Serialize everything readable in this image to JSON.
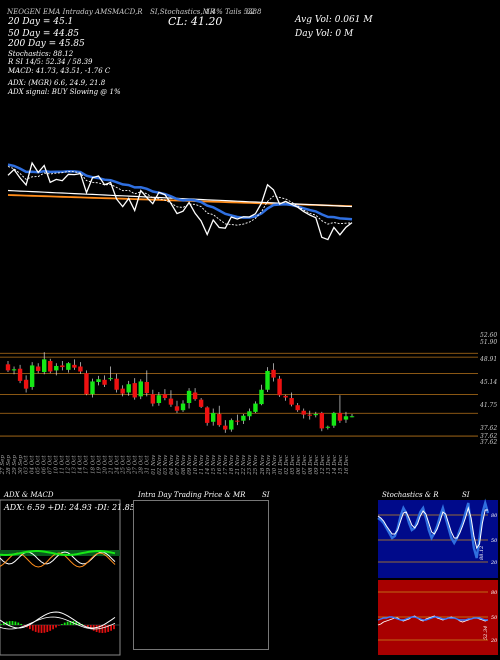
{
  "header": {
    "top_line_left": "NEOGEN EMA Intraday AMSMACD,R",
    "top_line_mid": "SI,Stochastics,MR",
    "top_line_right": "",
    "cl_label": "CL: 41.20",
    "cl_extra": "1.4% Tails 5388",
    "cl_extra2": "62",
    "avg_vol": "Avg Vol: 0.061 M",
    "day_vol": "Day Vol: 0   M",
    "ema": [
      {
        "label": "20  Day = 45.1",
        "color": "#ffffff"
      },
      {
        "label": "50  Day = 44.85",
        "color": "#ffffff"
      },
      {
        "label": "200  Day = 45.85",
        "color": "#ffffff"
      }
    ],
    "stoch_line": "Stochastics: 88.12",
    "rsi_line": "R                SI 14/5: 52.34  / 58.39",
    "macd_line": "MACD: 41.73,  43.51, -1.76  C",
    "adx_line": "ADX:                              (MGR) 6.6,  24.9,  21.8",
    "adx_signal": "ADX  signal:                        BUY Slowing @ 1%"
  },
  "price_levels": [
    {
      "label": "52.60",
      "value": 52.6
    },
    {
      "label": "51.90",
      "value": 51.9
    },
    {
      "label": "48.91",
      "value": 48.91
    },
    {
      "label": "45.14",
      "value": 45.14
    },
    {
      "label": "41.75",
      "value": 41.75
    },
    {
      "label": "37.62",
      "value": 37.62
    },
    {
      "label": "37.62",
      "value": 37.0
    },
    {
      "label": "37.62",
      "value": 36.5
    }
  ],
  "chart_data": {
    "type": "candlestick",
    "dates": [
      "27 Sep",
      "28 Sep",
      "29 Sep",
      "30 Sep",
      "03 Oct",
      "04 Oct",
      "05 Oct",
      "06 Oct",
      "07 Oct",
      "10 Oct",
      "11 Oct",
      "12 Oct",
      "13 Oct",
      "14 Oct",
      "17 Oct",
      "18 Oct",
      "19 Oct",
      "20 Oct",
      "21 Oct",
      "24 Oct",
      "25 Oct",
      "26 Oct",
      "27 Oct",
      "28 Oct",
      "31 Oct",
      "01 Nov",
      "02 Nov",
      "03 Nov",
      "04 Nov",
      "07 Nov",
      "08 Nov",
      "09 Nov",
      "10 Nov",
      "11 Nov",
      "14 Nov",
      "15 Nov",
      "16 Nov",
      "17 Nov",
      "18 Nov",
      "21 Nov",
      "22 Nov",
      "23 Nov",
      "25 Nov",
      "28 Nov",
      "29 Nov",
      "30 Nov",
      "01 Dec",
      "02 Dec",
      "05 Dec",
      "06 Dec",
      "07 Dec",
      "08 Dec",
      "09 Dec",
      "12 Dec",
      "13 Dec",
      "14 Dec",
      "15 Dec",
      "16 Dec"
    ],
    "candles": [
      [
        50.6,
        51.2,
        49.2,
        49.5
      ],
      [
        49.5,
        50.2,
        48.8,
        49.7
      ],
      [
        49.8,
        50.5,
        47.2,
        47.6
      ],
      [
        47.8,
        48.6,
        45.5,
        46.2
      ],
      [
        46.5,
        51.0,
        46.0,
        50.4
      ],
      [
        50.2,
        50.8,
        49.0,
        49.4
      ],
      [
        49.2,
        52.8,
        48.8,
        51.5
      ],
      [
        51.2,
        51.6,
        49.0,
        49.3
      ],
      [
        49.5,
        50.8,
        48.6,
        50.3
      ],
      [
        50.4,
        51.2,
        49.5,
        50.1
      ],
      [
        49.6,
        51.0,
        49.1,
        50.8
      ],
      [
        50.5,
        51.5,
        49.6,
        50.0
      ],
      [
        50.2,
        51.0,
        48.9,
        49.3
      ],
      [
        49.0,
        49.5,
        45.0,
        45.2
      ],
      [
        45.2,
        48.0,
        44.6,
        47.5
      ],
      [
        47.4,
        48.5,
        46.8,
        47.9
      ],
      [
        47.8,
        48.6,
        46.5,
        46.9
      ],
      [
        48.0,
        50.2,
        47.6,
        48.1
      ],
      [
        48.0,
        48.9,
        45.5,
        46.0
      ],
      [
        46.2,
        46.8,
        44.8,
        45.3
      ],
      [
        45.5,
        47.6,
        44.9,
        47.0
      ],
      [
        47.2,
        48.1,
        44.2,
        44.6
      ],
      [
        44.8,
        47.9,
        44.3,
        47.5
      ],
      [
        47.4,
        49.5,
        44.8,
        45.4
      ],
      [
        45.2,
        46.0,
        43.0,
        43.5
      ],
      [
        43.6,
        45.6,
        43.1,
        45.0
      ],
      [
        45.2,
        46.1,
        44.1,
        44.5
      ],
      [
        44.4,
        45.9,
        42.9,
        43.3
      ],
      [
        43.0,
        44.0,
        41.8,
        42.2
      ],
      [
        42.3,
        44.1,
        42.0,
        43.5
      ],
      [
        43.6,
        46.3,
        42.6,
        45.8
      ],
      [
        45.5,
        46.3,
        44.0,
        44.3
      ],
      [
        44.2,
        44.5,
        42.7,
        42.9
      ],
      [
        42.8,
        43.0,
        39.5,
        40.0
      ],
      [
        40.2,
        42.6,
        39.5,
        41.8
      ],
      [
        41.6,
        43.1,
        39.3,
        39.6
      ],
      [
        39.5,
        40.5,
        38.2,
        38.8
      ],
      [
        38.8,
        40.8,
        38.4,
        40.5
      ],
      [
        40.4,
        41.5,
        39.6,
        40.3
      ],
      [
        40.4,
        41.6,
        39.8,
        41.3
      ],
      [
        41.2,
        42.6,
        40.5,
        42.1
      ],
      [
        42.0,
        43.9,
        41.8,
        43.5
      ],
      [
        43.4,
        46.9,
        43.2,
        46.0
      ],
      [
        46.0,
        50.1,
        45.6,
        49.4
      ],
      [
        49.6,
        50.8,
        47.5,
        48.2
      ],
      [
        48.0,
        48.5,
        44.7,
        45.0
      ],
      [
        44.9,
        45.1,
        44.0,
        44.6
      ],
      [
        44.5,
        45.5,
        43.0,
        43.3
      ],
      [
        43.2,
        43.6,
        42.0,
        42.3
      ],
      [
        42.2,
        42.6,
        40.8,
        41.5
      ],
      [
        41.5,
        42.2,
        40.6,
        41.3
      ],
      [
        41.4,
        42.0,
        41.0,
        41.6
      ],
      [
        41.8,
        42.0,
        38.5,
        39.0
      ],
      [
        39.2,
        39.5,
        38.8,
        39.3
      ],
      [
        39.5,
        42.0,
        39.1,
        41.8
      ],
      [
        41.8,
        45.0,
        40.0,
        40.4
      ],
      [
        40.6,
        42.0,
        40.0,
        41.2
      ],
      [
        41.2,
        41.6,
        41.0,
        41.2
      ]
    ],
    "ylim": [
      36,
      55
    ]
  },
  "panels": {
    "adx": {
      "title": "ADX  & MACD",
      "readout": "ADX: 6.59  +DI: 24.93  -DI: 21.85"
    },
    "intra": {
      "title": "Intra  Day Trading Price  & MR",
      "title_right": "SI"
    },
    "stoch": {
      "title": "Stochastics & R",
      "title_right": "SI",
      "levels_top": [
        "80",
        "50",
        "20"
      ],
      "levels_bottom": [
        "80",
        "50",
        "20"
      ],
      "readout_top": "88.12",
      "readout_bottom": "52.34"
    }
  },
  "colors": {
    "ema_blue": "#2f6fe0",
    "ema_orange": "#ff8c1a",
    "grid_orange": "#b8741a",
    "bull": "#16e816",
    "bear": "#ee1111",
    "stoch_bg": "#000a8a",
    "rsi_bg": "#a80000"
  }
}
